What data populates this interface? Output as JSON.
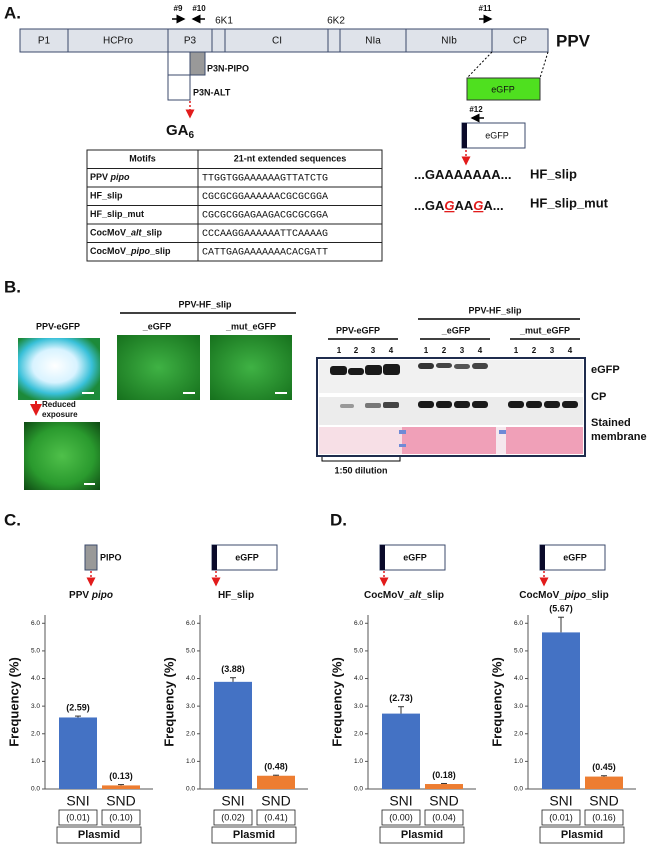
{
  "panel_a": {
    "label": "A.",
    "genome": {
      "name": "PPV",
      "segments": [
        "P1",
        "HCPro",
        "P3",
        "CI",
        "NIa",
        "NIb",
        "CP"
      ],
      "small_segments": [
        "6K1",
        "6K2"
      ]
    },
    "primers": [
      "#9",
      "#10",
      "#11",
      "#12"
    ],
    "p3n_pipo": "P3N-PIPO",
    "p3n_alt": "P3N-ALT",
    "ga": {
      "base": "GA",
      "subscript": "6"
    },
    "egfp_fusion": "eGFP",
    "egfp_reporter": "eGFP",
    "table": {
      "header": [
        "Motifs",
        "21-nt extended sequences"
      ],
      "rows": [
        {
          "motif": [
            {
              "text": "PPV "
            },
            {
              "text": "pipo",
              "italic": true
            }
          ],
          "sequence": "TTGGTGGAAAAAAGTTATCTG"
        },
        {
          "motif": [
            {
              "text": "HF_slip"
            }
          ],
          "sequence": "CGCGCGGAAAAAACGCGCGGA"
        },
        {
          "motif": [
            {
              "text": "HF_slip_mut"
            }
          ],
          "sequence": "CGCGCGGAGAAGACGCGCGGA"
        },
        {
          "motif": [
            {
              "text": "CocMoV_"
            },
            {
              "text": "alt",
              "italic": true
            },
            {
              "text": "_slip"
            }
          ],
          "sequence": "CCCAAGGAAAAAATTCAAAAG"
        },
        {
          "motif": [
            {
              "text": "CocMoV_"
            },
            {
              "text": "pipo",
              "italic": true
            },
            {
              "text": "_slip"
            }
          ],
          "sequence": "CATTGAGAAAAAAACACGATT"
        }
      ]
    },
    "slips": [
      {
        "sequence": [
          {
            "text": "...GAAAAAAA..."
          }
        ],
        "name": "HF_slip"
      },
      {
        "sequence": [
          {
            "text": "...GA"
          },
          {
            "text": "G",
            "mutated": true
          },
          {
            "text": "AA"
          },
          {
            "text": "G",
            "mutated": true
          },
          {
            "text": "A..."
          }
        ],
        "name": "HF_slip_mut"
      }
    ]
  },
  "panel_b": {
    "label": "B.",
    "images": {
      "control": "PPV-eGFP",
      "group": "PPV-HF_slip",
      "columns": [
        "_eGFP",
        "_mut_eGFP"
      ],
      "note": [
        "Reduced",
        "exposure"
      ]
    },
    "blot": {
      "groups": [
        "PPV-eGFP",
        "PPV-HF_slip"
      ],
      "subgroups": [
        "_eGFP",
        "_mut_eGFP"
      ],
      "lanes": [
        "1",
        "2",
        "3",
        "4"
      ],
      "rows": [
        "eGFP",
        "CP"
      ],
      "stain": [
        "Stained",
        "membrane"
      ],
      "dilution": "1:50 dilution"
    }
  },
  "panel_c": {
    "label": "C."
  },
  "panel_d": {
    "label": "D."
  },
  "chart_data": [
    {
      "type": "bar",
      "construct": {
        "label": "PIPO",
        "style": "gray"
      },
      "sequence_label": [
        {
          "text": "PPV "
        },
        {
          "text": "pipo",
          "italic": true
        }
      ],
      "y_label": "Frequency (%)",
      "categories": [
        "SNI",
        "SND"
      ],
      "values": [
        2.59,
        0.13
      ],
      "errors": [
        0.05,
        0.03
      ],
      "value_labels": [
        "(2.59)",
        "(0.13)"
      ],
      "colors": [
        "#4472c4",
        "#ed7d31"
      ],
      "ylim": [
        0,
        6.3
      ],
      "yticks": [
        {
          "value": 0,
          "label": "0.0"
        },
        {
          "value": 1,
          "label": "1.0"
        },
        {
          "value": 2,
          "label": "2.0"
        },
        {
          "value": 3,
          "label": "3.0"
        },
        {
          "value": 4,
          "label": "4.0"
        },
        {
          "value": 5,
          "label": "5.0"
        },
        {
          "value": 6,
          "label": "6.0"
        }
      ],
      "plasmid": [
        "(0.01)",
        "(0.10)"
      ],
      "plasmid_label": "Plasmid"
    },
    {
      "type": "bar",
      "construct": {
        "label": "eGFP",
        "style": "bar"
      },
      "sequence_label": [
        {
          "text": "HF_slip"
        }
      ],
      "y_label": "Frequency (%)",
      "categories": [
        "SNI",
        "SND"
      ],
      "values": [
        3.88,
        0.48
      ],
      "errors": [
        0.15,
        0.02
      ],
      "value_labels": [
        "(3.88)",
        "(0.48)"
      ],
      "colors": [
        "#4472c4",
        "#ed7d31"
      ],
      "ylim": [
        0,
        6.3
      ],
      "yticks": [
        {
          "value": 0,
          "label": "0.0"
        },
        {
          "value": 1,
          "label": "1.0"
        },
        {
          "value": 2,
          "label": "2.0"
        },
        {
          "value": 3,
          "label": "3.0"
        },
        {
          "value": 4,
          "label": "4.0"
        },
        {
          "value": 5,
          "label": "5.0"
        },
        {
          "value": 6,
          "label": "6.0"
        }
      ],
      "plasmid": [
        "(0.02)",
        "(0.41)"
      ],
      "plasmid_label": "Plasmid"
    },
    {
      "type": "bar",
      "construct": {
        "label": "eGFP",
        "style": "bar"
      },
      "sequence_label": [
        {
          "text": "CocMoV_"
        },
        {
          "text": "alt",
          "italic": true
        },
        {
          "text": "_slip"
        }
      ],
      "y_label": "Frequency (%)",
      "categories": [
        "SNI",
        "SND"
      ],
      "values": [
        2.73,
        0.18
      ],
      "errors": [
        0.25,
        0.02
      ],
      "value_labels": [
        "(2.73)",
        "(0.18)"
      ],
      "colors": [
        "#4472c4",
        "#ed7d31"
      ],
      "ylim": [
        0,
        6.3
      ],
      "yticks": [
        {
          "value": 0,
          "label": "0.0"
        },
        {
          "value": 1,
          "label": "1.0"
        },
        {
          "value": 2,
          "label": "2.0"
        },
        {
          "value": 3,
          "label": "3.0"
        },
        {
          "value": 4,
          "label": "4.0"
        },
        {
          "value": 5,
          "label": "5.0"
        },
        {
          "value": 6,
          "label": "6.0"
        }
      ],
      "plasmid": [
        "(0.00)",
        "(0.04)"
      ],
      "plasmid_label": "Plasmid"
    },
    {
      "type": "bar",
      "construct": {
        "label": "eGFP",
        "style": "bar"
      },
      "sequence_label": [
        {
          "text": "CocMoV_"
        },
        {
          "text": "pipo",
          "italic": true
        },
        {
          "text": "_slip"
        }
      ],
      "y_label": "Frequency (%)",
      "categories": [
        "SNI",
        "SND"
      ],
      "values": [
        5.67,
        0.45
      ],
      "errors": [
        0.55,
        0.03
      ],
      "value_labels": [
        "(5.67)",
        "(0.45)"
      ],
      "colors": [
        "#4472c4",
        "#ed7d31"
      ],
      "ylim": [
        0,
        6.3
      ],
      "yticks": [
        {
          "value": 0,
          "label": "0.0"
        },
        {
          "value": 1,
          "label": "1.0"
        },
        {
          "value": 2,
          "label": "2.0"
        },
        {
          "value": 3,
          "label": "3.0"
        },
        {
          "value": 4,
          "label": "4.0"
        },
        {
          "value": 5,
          "label": "5.0"
        },
        {
          "value": 6,
          "label": "6.0"
        }
      ],
      "plasmid": [
        "(0.01)",
        "(0.16)"
      ],
      "plasmid_label": "Plasmid"
    }
  ]
}
